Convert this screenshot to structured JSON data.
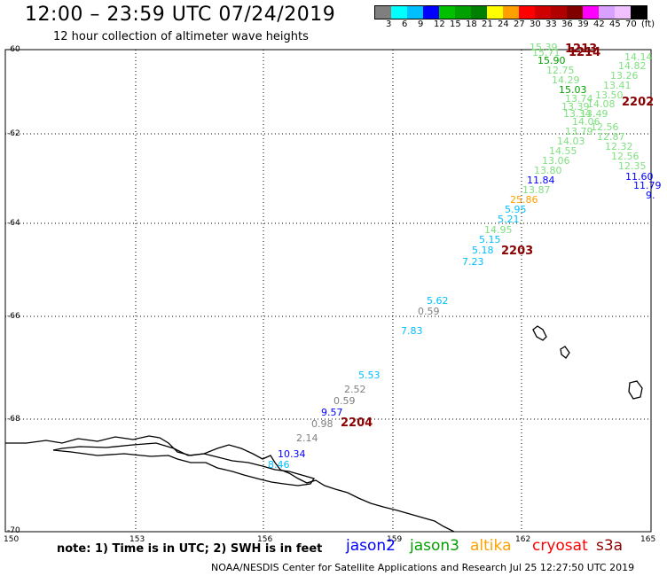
{
  "title": "12:00 – 23:59 UTC 07/24/2019",
  "subtitle": "12 hour collection of altimeter wave heights",
  "scale": {
    "colors": [
      "#7f7f7f",
      "#00ffff",
      "#00bfff",
      "#0000ff",
      "#00c000",
      "#00a000",
      "#008000",
      "#ffff00",
      "#ffa000",
      "#ff0000",
      "#d00000",
      "#b00000",
      "#800000",
      "#ff00ff",
      "#d8a0ff",
      "#f0c0ff",
      "#000000"
    ],
    "labels": [
      "3",
      "6",
      "9",
      "12",
      "15",
      "18",
      "21",
      "24",
      "27",
      "30",
      "33",
      "36",
      "39",
      "42",
      "45",
      "70",
      "(ft)"
    ]
  },
  "lat_labels": [
    "-60",
    "-62",
    "-64",
    "-66",
    "-68",
    "-70"
  ],
  "lon_labels": [
    "150",
    "153",
    "156",
    "159",
    "162",
    "165"
  ],
  "note": "note: 1) Time is in UTC; 2) SWH is in feet",
  "satellites": [
    {
      "name": "jason2",
      "color": "#0000ff"
    },
    {
      "name": "jason3",
      "color": "#00a000"
    },
    {
      "name": "altika",
      "color": "#ffa000"
    },
    {
      "name": "cryosat",
      "color": "#ff0000"
    },
    {
      "name": "s3a",
      "color": "#8b0000"
    }
  ],
  "footer": "NOAA/NESDIS Center for Satellite Applications and Research   Jul 25 12:27:50 UTC 2019",
  "time_labels": [
    "1213",
    "1214",
    "2202",
    "2203",
    "2204"
  ],
  "wave_values": [
    {
      "v": "15.39",
      "c": "#7fe07f"
    },
    {
      "v": "15.71",
      "c": "#7fe07f"
    },
    {
      "v": "15.90",
      "c": "#00a000"
    },
    {
      "v": "12.75",
      "c": "#7fe07f"
    },
    {
      "v": "14.29",
      "c": "#7fe07f"
    },
    {
      "v": "15.03",
      "c": "#00a000"
    },
    {
      "v": "13.74",
      "c": "#7fe07f"
    },
    {
      "v": "13.39",
      "c": "#7fe07f"
    },
    {
      "v": "13.34",
      "c": "#7fe07f"
    },
    {
      "v": "14.06",
      "c": "#7fe07f"
    },
    {
      "v": "13.79",
      "c": "#7fe07f"
    },
    {
      "v": "14.03",
      "c": "#7fe07f"
    },
    {
      "v": "14.55",
      "c": "#7fe07f"
    },
    {
      "v": "13.06",
      "c": "#7fe07f"
    },
    {
      "v": "13.80",
      "c": "#7fe07f"
    },
    {
      "v": "11.84",
      "c": "#0000ff"
    },
    {
      "v": "13.87",
      "c": "#7fe07f"
    },
    {
      "v": "25.86",
      "c": "#ffa000"
    },
    {
      "v": "5.95",
      "c": "#00bfff"
    },
    {
      "v": "5.21",
      "c": "#00bfff"
    },
    {
      "v": "14.95",
      "c": "#7fe07f"
    },
    {
      "v": "5.15",
      "c": "#00bfff"
    },
    {
      "v": "5.18",
      "c": "#00bfff"
    },
    {
      "v": "7.23",
      "c": "#00bfff"
    },
    {
      "v": "5.62",
      "c": "#00bfff"
    },
    {
      "v": "0.59",
      "c": "#7f7f7f"
    },
    {
      "v": "7.83",
      "c": "#00bfff"
    },
    {
      "v": "5.53",
      "c": "#00bfff"
    },
    {
      "v": "2.52",
      "c": "#7f7f7f"
    },
    {
      "v": "0.59",
      "c": "#7f7f7f"
    },
    {
      "v": "9.57",
      "c": "#0000ff"
    },
    {
      "v": "0.98",
      "c": "#7f7f7f"
    },
    {
      "v": "2.14",
      "c": "#7f7f7f"
    },
    {
      "v": "10.34",
      "c": "#0000ff"
    },
    {
      "v": "8.46",
      "c": "#00bfff"
    },
    {
      "v": "14.14",
      "c": "#7fe07f"
    },
    {
      "v": "14.82",
      "c": "#7fe07f"
    },
    {
      "v": "13.26",
      "c": "#7fe07f"
    },
    {
      "v": "13.41",
      "c": "#7fe07f"
    },
    {
      "v": "13.50",
      "c": "#7fe07f"
    },
    {
      "v": "14.08",
      "c": "#7fe07f"
    },
    {
      "v": "13.49",
      "c": "#7fe07f"
    },
    {
      "v": "12.56",
      "c": "#7fe07f"
    },
    {
      "v": "12.87",
      "c": "#7fe07f"
    },
    {
      "v": "12.32",
      "c": "#7fe07f"
    },
    {
      "v": "12.56",
      "c": "#7fe07f"
    },
    {
      "v": "12.35",
      "c": "#7fe07f"
    },
    {
      "v": "11.60",
      "c": "#0000ff"
    },
    {
      "v": "11.79",
      "c": "#0000ff"
    },
    {
      "v": "9.",
      "c": "#0000ff"
    }
  ]
}
